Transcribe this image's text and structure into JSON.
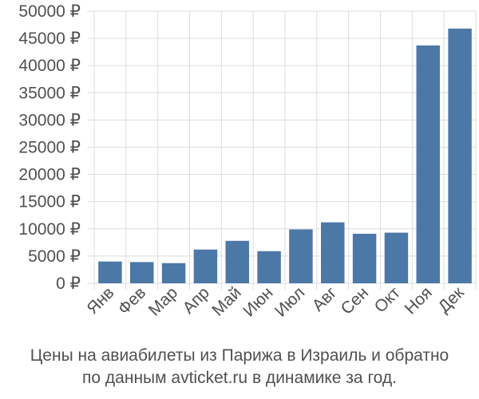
{
  "chart_data": {
    "type": "bar",
    "categories": [
      "Янв",
      "Фев",
      "Мар",
      "Апр",
      "Май",
      "Июн",
      "Июл",
      "Авг",
      "Сен",
      "Окт",
      "Ноя",
      "Дек"
    ],
    "values": [
      4000,
      3900,
      3700,
      6200,
      7800,
      5900,
      9900,
      11200,
      9100,
      9300,
      43700,
      46800
    ],
    "ylim": [
      0,
      50000
    ],
    "yticks": [
      0,
      5000,
      10000,
      15000,
      20000,
      25000,
      30000,
      35000,
      40000,
      45000,
      50000
    ],
    "ytick_labels": [
      "0 ₽",
      "5000 ₽",
      "10000 ₽",
      "15000 ₽",
      "20000 ₽",
      "25000 ₽",
      "30000 ₽",
      "35000 ₽",
      "40000 ₽",
      "45000 ₽",
      "50000 ₽"
    ],
    "grid": true,
    "bar_color": "#4c78a8",
    "title": "",
    "xlabel": "",
    "ylabel": ""
  },
  "caption": {
    "line1": "Цены на авиабилеты из Парижа в Израиль и обратно",
    "line2": "по данным avticket.ru в динамике за год."
  }
}
